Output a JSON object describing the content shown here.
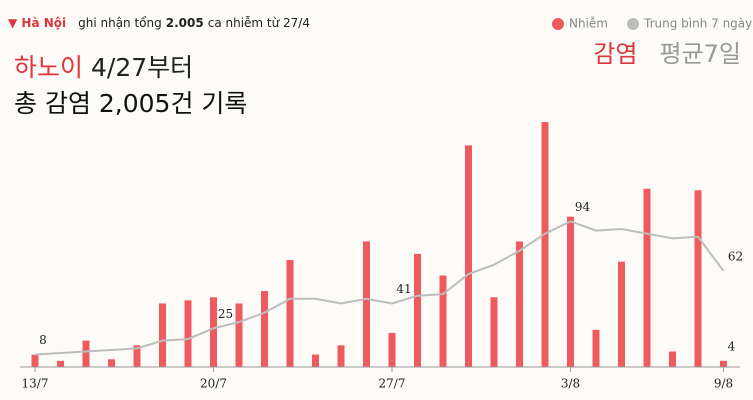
{
  "header": {
    "location": "Hà Nội",
    "text_before": "ghi nhận tổng",
    "total": "2.005",
    "text_after": "ca nhiễm từ 27/4"
  },
  "annotation_ko": {
    "line1_red": "하노이",
    "line1_rest": "4/27부터",
    "line2": "총 감염 2,005건 기록",
    "legend": [
      "감염",
      "평균7일"
    ]
  },
  "chart_data": {
    "type": "bar",
    "categories": [
      "13/7",
      null,
      null,
      null,
      null,
      null,
      null,
      "20/7",
      null,
      null,
      null,
      null,
      null,
      null,
      "27/7",
      null,
      null,
      null,
      null,
      null,
      null,
      "3/8",
      null,
      null,
      null,
      null,
      null,
      "9/8"
    ],
    "series": [
      {
        "name": "Nhiễm",
        "color": "#ef5a5f",
        "values": [
          8,
          4,
          17,
          5,
          14,
          41,
          43,
          45,
          41,
          49,
          69,
          8,
          14,
          81,
          22,
          73,
          59,
          143,
          45,
          81,
          158,
          97,
          24,
          68,
          115,
          10,
          114,
          4
        ],
        "value_labels": [
          "8",
          null,
          null,
          null,
          null,
          null,
          null,
          null,
          null,
          null,
          null,
          null,
          null,
          null,
          null,
          null,
          null,
          null,
          null,
          null,
          null,
          null,
          null,
          null,
          null,
          null,
          null,
          "4"
        ]
      },
      {
        "name": "Trung bình 7 ngày",
        "color": "#bdbdbd",
        "type": "line",
        "values": [
          8,
          9,
          10,
          11,
          12,
          17,
          18,
          25,
          29,
          35,
          44,
          44,
          41,
          44,
          41,
          46,
          47,
          60,
          66,
          75,
          86,
          94,
          88,
          89,
          86,
          83,
          84,
          62
        ],
        "value_labels": [
          null,
          null,
          null,
          null,
          null,
          null,
          null,
          "25",
          null,
          null,
          null,
          null,
          null,
          null,
          "41",
          null,
          null,
          null,
          null,
          null,
          null,
          "94",
          null,
          null,
          null,
          null,
          null,
          "62"
        ]
      }
    ],
    "ylim": [
      0,
      160
    ]
  }
}
